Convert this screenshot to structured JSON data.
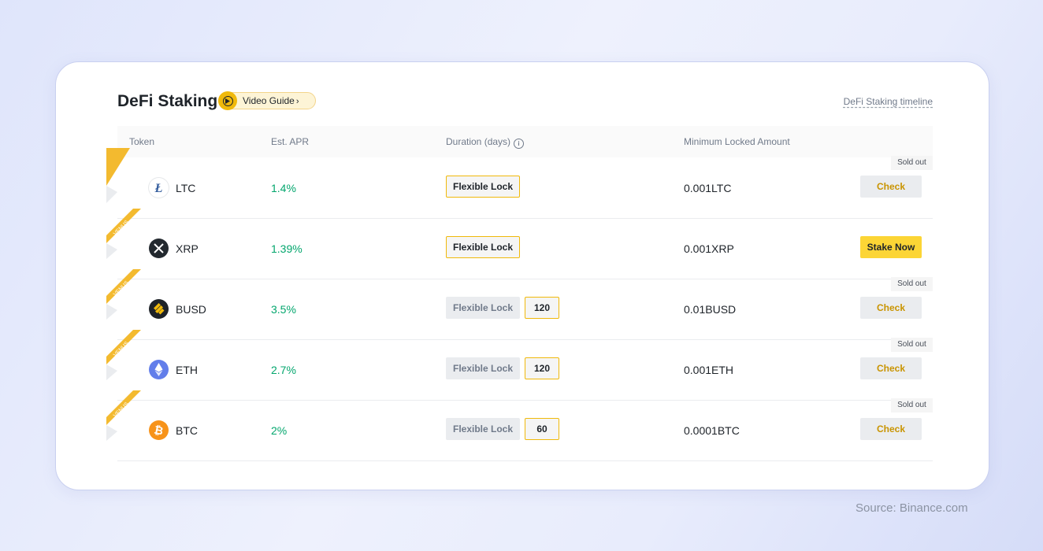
{
  "header": {
    "title": "DeFi Staking",
    "video_guide_label": "Video Guide",
    "video_guide_chevron": "›",
    "timeline_link": "DeFi Staking timeline"
  },
  "table": {
    "columns": {
      "token": "Token",
      "apr": "Est. APR",
      "duration": "Duration (days)",
      "min_amount": "Minimum Locked Amount"
    },
    "rows": [
      {
        "token": "LTC",
        "apr": "1.4%",
        "lock_label": "Flexible Lock",
        "min_amount": "0.001LTC",
        "action": "Check",
        "sold_out": "Sold out",
        "ribbon": "",
        "icon": "ltc-icon"
      },
      {
        "token": "XRP",
        "apr": "1.39%",
        "lock_label": "Flexible Lock",
        "min_amount": "0.001XRP",
        "action": "Stake Now",
        "ribbon": "VENUS",
        "icon": "xrp-icon"
      },
      {
        "token": "BUSD",
        "apr": "3.5%",
        "lock_label": "Flexible Lock",
        "days": "120",
        "min_amount": "0.01BUSD",
        "action": "Check",
        "sold_out": "Sold out",
        "ribbon": "VENUS",
        "icon": "busd-icon"
      },
      {
        "token": "ETH",
        "apr": "2.7%",
        "lock_label": "Flexible Lock",
        "days": "120",
        "min_amount": "0.001ETH",
        "action": "Check",
        "sold_out": "Sold out",
        "ribbon": "VENUS",
        "icon": "eth-icon"
      },
      {
        "token": "BTC",
        "apr": "2%",
        "lock_label": "Flexible Lock",
        "days": "60",
        "min_amount": "0.0001BTC",
        "action": "Check",
        "sold_out": "Sold out",
        "ribbon": "VENUS",
        "icon": "btc-icon"
      }
    ]
  },
  "source": "Source: Binance.com",
  "colors": {
    "brand_yellow": "#f0b90b",
    "apr_green": "#03a66d",
    "check_text": "#c99400",
    "stake_button": "#fcd535"
  }
}
